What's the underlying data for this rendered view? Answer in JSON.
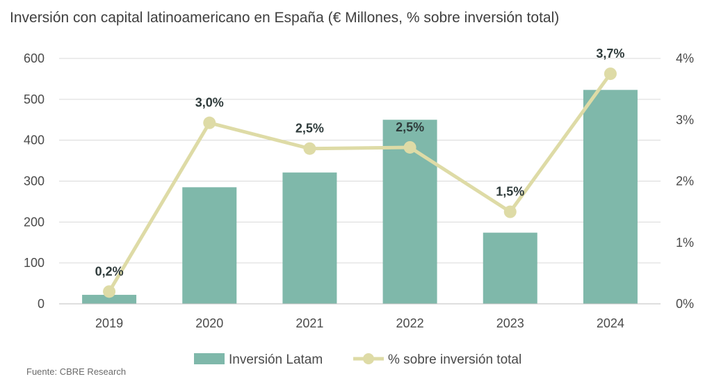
{
  "title": "Inversión con capital latinoamericano en España (€ Millones, % sobre inversión total)",
  "source": "Fuente: CBRE Research",
  "colors": {
    "bar": "#7fb8aa",
    "line": "#dedba6",
    "grid": "#d9d9d9",
    "axis_text": "#4a4a4a",
    "label_text": "#2f3b3b"
  },
  "chart_data": {
    "type": "bar",
    "categories": [
      "2019",
      "2020",
      "2021",
      "2022",
      "2023",
      "2024"
    ],
    "series": [
      {
        "name": "Inversión Latam",
        "type": "bar",
        "axis": "left",
        "values": [
          22,
          285,
          321,
          450,
          174,
          523
        ]
      },
      {
        "name": "% sobre inversión total",
        "type": "line",
        "axis": "right",
        "values": [
          0.2,
          3.0,
          2.5,
          2.5,
          1.5,
          3.7
        ],
        "plotted": [
          0.2,
          2.95,
          2.53,
          2.55,
          1.5,
          3.75
        ],
        "labels": [
          "0,2%",
          "3,0%",
          "2,5%",
          "2,5%",
          "1,5%",
          "3,7%"
        ]
      }
    ],
    "y_left": {
      "ylim": [
        0,
        600
      ],
      "ticks": [
        "0",
        "100",
        "200",
        "300",
        "400",
        "500",
        "600"
      ]
    },
    "y_right": {
      "ylim": [
        0,
        4
      ],
      "ticks": [
        "0%",
        "1%",
        "2%",
        "3%",
        "4%"
      ]
    },
    "grid": true,
    "legend": {
      "position": "bottom",
      "items": [
        "Inversión Latam",
        "% sobre inversión total"
      ]
    }
  }
}
